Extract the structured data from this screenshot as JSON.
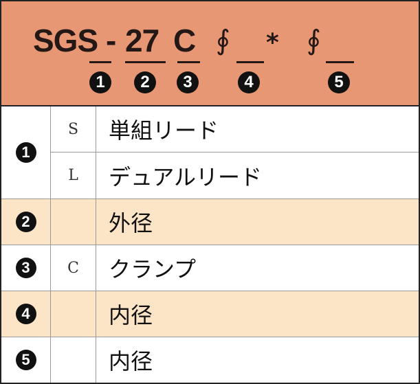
{
  "header": {
    "code_part1": "SGS",
    "code_dash": "-",
    "code_part2": "27",
    "code_part3": "C",
    "phi": "∮",
    "star": "*",
    "markers": [
      "1",
      "2",
      "3",
      "4",
      "5"
    ]
  },
  "colors": {
    "header_bg": "#E89774",
    "highlight_row_bg": "#FCE4C6"
  },
  "rows": [
    {
      "num": "1",
      "options": [
        {
          "code": "S",
          "label": "単組リード"
        },
        {
          "code": "L",
          "label": "デュアルリード"
        }
      ]
    },
    {
      "num": "2",
      "code": "",
      "label": "外径"
    },
    {
      "num": "3",
      "code": "C",
      "label": "クランプ"
    },
    {
      "num": "4",
      "code": "",
      "label": "内径"
    },
    {
      "num": "5",
      "code": "",
      "label": "内径"
    }
  ]
}
